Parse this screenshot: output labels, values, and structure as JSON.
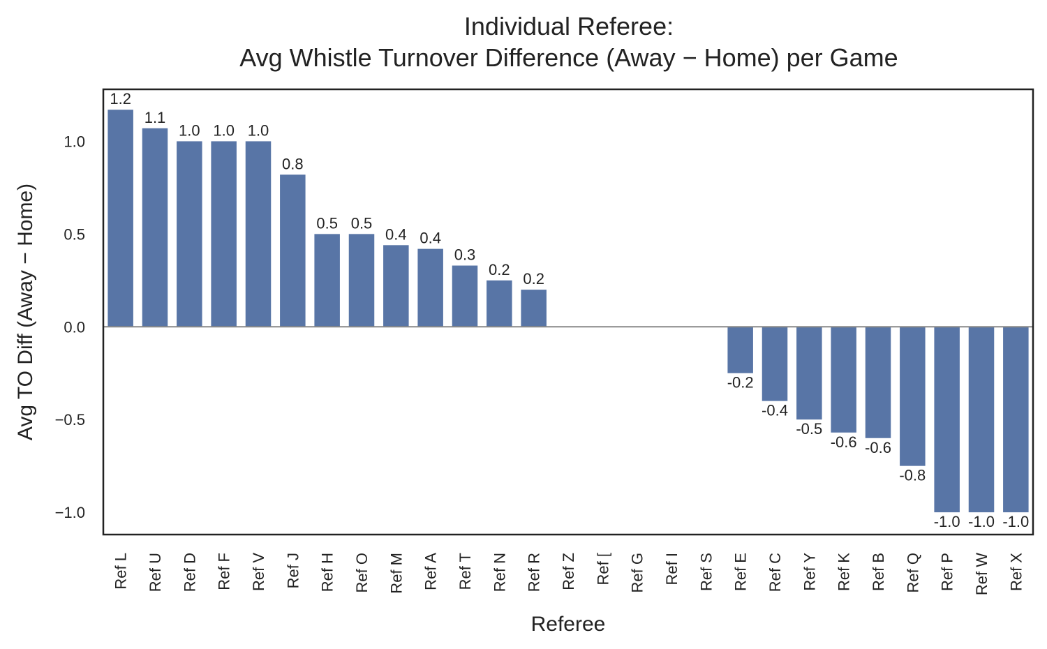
{
  "chart_data": {
    "type": "bar",
    "title_lines": [
      "Individual Referee:",
      "Avg Whistle Turnover Difference (Away − Home) per Game"
    ],
    "xlabel": "Referee",
    "ylabel": "Avg TO Diff (Away − Home)",
    "ylim": [
      -1.12,
      1.28
    ],
    "yticks": [
      -1.0,
      -0.5,
      0.0,
      0.5,
      1.0
    ],
    "ytick_labels": [
      "−1.0",
      "−0.5",
      "0.0",
      "0.5",
      "1.0"
    ],
    "categories": [
      "Ref L",
      "Ref U",
      "Ref D",
      "Ref F",
      "Ref V",
      "Ref J",
      "Ref H",
      "Ref O",
      "Ref M",
      "Ref A",
      "Ref T",
      "Ref N",
      "Ref R",
      "Ref Z",
      "Ref [",
      "Ref G",
      "Ref I",
      "Ref S",
      "Ref E",
      "Ref C",
      "Ref Y",
      "Ref K",
      "Ref B",
      "Ref Q",
      "Ref P",
      "Ref W",
      "Ref X"
    ],
    "values": [
      1.17,
      1.07,
      1.0,
      1.0,
      1.0,
      0.82,
      0.5,
      0.5,
      0.44,
      0.42,
      0.33,
      0.25,
      0.2,
      0,
      0,
      0,
      0,
      0,
      -0.25,
      -0.4,
      -0.5,
      -0.57,
      -0.6,
      -0.75,
      -1.0,
      -1.0,
      -1.0
    ],
    "value_labels": [
      "1.2",
      "1.1",
      "1.0",
      "1.0",
      "1.0",
      "0.8",
      "0.5",
      "0.5",
      "0.4",
      "0.4",
      "0.3",
      "0.2",
      "0.2",
      "",
      "",
      "",
      "",
      "",
      "-0.2",
      "-0.4",
      "-0.5",
      "-0.6",
      "-0.6",
      "-0.8",
      "-1.0",
      "-1.0",
      "-1.0"
    ],
    "grid": false,
    "colors": {
      "bar": "#5875a6",
      "zero_line": "#888888",
      "frame": "#222222"
    }
  }
}
